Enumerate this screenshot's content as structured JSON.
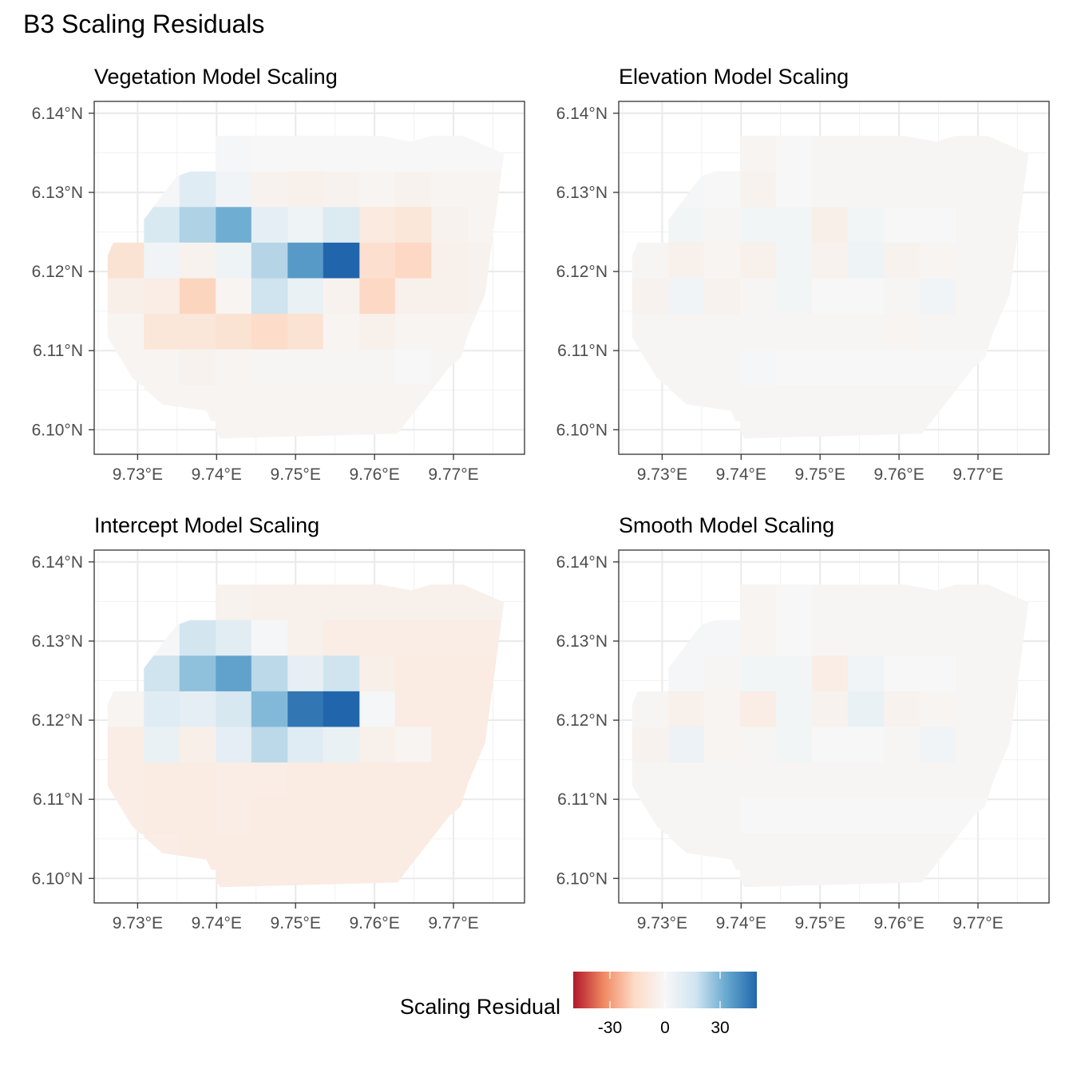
{
  "figure": {
    "title": "B3 Scaling Residuals"
  },
  "legend": {
    "title": "Scaling Residual",
    "tick_labels": [
      "-30",
      "0",
      "30"
    ],
    "tick_values": [
      -30,
      0,
      30
    ],
    "range": [
      -50,
      50
    ],
    "palette": "RdBu",
    "colors": [
      "#b2182b",
      "#ef8a62",
      "#fddbc7",
      "#f7f7f7",
      "#d1e5f0",
      "#67a9cf",
      "#2166ac"
    ],
    "position": "bottom"
  },
  "chart_data": [
    {
      "type": "heatmap",
      "title": "Vegetation Model Scaling",
      "xlabel": "",
      "ylabel": "",
      "x_tick_labels": [
        "9.73°E",
        "9.74°E",
        "9.75°E",
        "9.76°E",
        "9.77°E"
      ],
      "x_ticks": [
        9.73,
        9.74,
        9.75,
        9.76,
        9.77
      ],
      "y_tick_labels": [
        "6.10°N",
        "6.11°N",
        "6.12°N",
        "6.13°N",
        "6.14°N"
      ],
      "y_ticks": [
        6.1,
        6.11,
        6.12,
        6.13,
        6.14
      ],
      "xlim": [
        9.7245,
        9.779
      ],
      "ylim": [
        6.0969,
        6.1415
      ],
      "x_centers": [
        9.7285,
        9.7331,
        9.7376,
        9.7422,
        9.7467,
        9.7513,
        9.7558,
        9.7604,
        9.7649,
        9.7695,
        9.7741
      ],
      "y_centers": [
        6.1349,
        6.1304,
        6.1259,
        6.1214,
        6.1169,
        6.1124,
        6.1079,
        6.1034,
        6.0989
      ],
      "boundary": [
        [
          9.7286,
          6.1246
        ],
        [
          9.7309,
          6.1267
        ],
        [
          9.7343,
          6.1312
        ],
        [
          9.7351,
          6.1321
        ],
        [
          9.7371,
          6.1328
        ],
        [
          9.7381,
          6.1394
        ],
        [
          9.7502,
          6.1391
        ],
        [
          9.7647,
          6.1364
        ],
        [
          9.7695,
          6.1379
        ],
        [
          9.7764,
          6.1349
        ],
        [
          9.774,
          6.1171
        ],
        [
          9.7719,
          6.1122
        ],
        [
          9.7709,
          6.1091
        ],
        [
          9.7694,
          6.1078
        ],
        [
          9.7629,
          6.0995
        ],
        [
          9.7404,
          6.0989
        ],
        [
          9.7387,
          6.1024
        ],
        [
          9.7331,
          6.1032
        ],
        [
          9.7293,
          6.1066
        ],
        [
          9.7262,
          6.1117
        ],
        [
          9.7259,
          6.1213
        ],
        [
          9.7272,
          6.1243
        ]
      ],
      "values": [
        [
          null,
          null,
          null,
          1,
          0,
          0,
          0,
          0,
          0,
          0,
          0
        ],
        [
          null,
          1,
          10,
          3,
          -3,
          -4,
          -3,
          -2,
          -3,
          -2,
          -2
        ],
        [
          null,
          13,
          22,
          32,
          8,
          4,
          12,
          -8,
          -10,
          -3,
          -2
        ],
        [
          -12,
          3,
          -3,
          4,
          21,
          37,
          50,
          -14,
          -17,
          -4,
          -3
        ],
        [
          -5,
          -6,
          -18,
          -2,
          17,
          6,
          -3,
          -17,
          -4,
          -4,
          -3
        ],
        [
          -2,
          -10,
          -10,
          -12,
          -16,
          -12,
          -2,
          -4,
          -2,
          -2,
          -2
        ],
        [
          -2,
          -2,
          -3,
          -2,
          -1,
          -1,
          -1,
          -1,
          0,
          -1,
          -1
        ],
        [
          null,
          -2,
          -2,
          -2,
          -2,
          -2,
          -2,
          -2,
          -2,
          -1,
          null
        ],
        [
          null,
          null,
          null,
          -2,
          -2,
          -2,
          -2,
          -2,
          -2,
          null,
          null
        ]
      ]
    },
    {
      "type": "heatmap",
      "title": "Elevation Model Scaling",
      "xlabel": "",
      "ylabel": "",
      "x_tick_labels": [
        "9.73°E",
        "9.74°E",
        "9.75°E",
        "9.76°E",
        "9.77°E"
      ],
      "x_ticks": [
        9.73,
        9.74,
        9.75,
        9.76,
        9.77
      ],
      "y_tick_labels": [
        "6.10°N",
        "6.11°N",
        "6.12°N",
        "6.13°N",
        "6.14°N"
      ],
      "y_ticks": [
        6.1,
        6.11,
        6.12,
        6.13,
        6.14
      ],
      "xlim": [
        9.7245,
        9.779
      ],
      "ylim": [
        6.0969,
        6.1415
      ],
      "x_centers": [
        9.7285,
        9.7331,
        9.7376,
        9.7422,
        9.7467,
        9.7513,
        9.7558,
        9.7604,
        9.7649,
        9.7695,
        9.7741
      ],
      "y_centers": [
        6.1349,
        6.1304,
        6.1259,
        6.1214,
        6.1169,
        6.1124,
        6.1079,
        6.1034,
        6.0989
      ],
      "boundary": [
        [
          9.7286,
          6.1246
        ],
        [
          9.7309,
          6.1267
        ],
        [
          9.7343,
          6.1312
        ],
        [
          9.7351,
          6.1321
        ],
        [
          9.7371,
          6.1328
        ],
        [
          9.7381,
          6.1394
        ],
        [
          9.7502,
          6.1391
        ],
        [
          9.7647,
          6.1364
        ],
        [
          9.7695,
          6.1379
        ],
        [
          9.7764,
          6.1349
        ],
        [
          9.774,
          6.1171
        ],
        [
          9.7719,
          6.1122
        ],
        [
          9.7709,
          6.1091
        ],
        [
          9.7694,
          6.1078
        ],
        [
          9.7629,
          6.0995
        ],
        [
          9.7404,
          6.0989
        ],
        [
          9.7387,
          6.1024
        ],
        [
          9.7331,
          6.1032
        ],
        [
          9.7293,
          6.1066
        ],
        [
          9.7262,
          6.1117
        ],
        [
          9.7259,
          6.1213
        ],
        [
          9.7272,
          6.1243
        ]
      ],
      "values": [
        [
          null,
          null,
          null,
          -2,
          0,
          -1,
          -1,
          -1,
          -1,
          -1,
          -1
        ],
        [
          null,
          1,
          0,
          -3,
          0,
          -1,
          -1,
          -1,
          -1,
          -1,
          -1
        ],
        [
          null,
          2,
          -1,
          2,
          2,
          -5,
          2,
          0,
          0,
          -1,
          -1
        ],
        [
          -1,
          -4,
          -2,
          -4,
          2,
          -3,
          4,
          -3,
          -2,
          -1,
          -1
        ],
        [
          -3,
          3,
          -3,
          -1,
          2,
          0,
          0,
          -1,
          3,
          -1,
          -1
        ],
        [
          -1,
          -1,
          -1,
          -1,
          -1,
          -1,
          -1,
          -2,
          -1,
          -1,
          -1
        ],
        [
          -1,
          -1,
          -1,
          1,
          0,
          0,
          0,
          0,
          0,
          0,
          0
        ],
        [
          null,
          -1,
          -1,
          -1,
          -1,
          -1,
          -1,
          -1,
          -1,
          -1,
          null
        ],
        [
          null,
          null,
          null,
          -1,
          -1,
          -1,
          -1,
          -1,
          -1,
          null,
          null
        ]
      ]
    },
    {
      "type": "heatmap",
      "title": "Intercept Model Scaling",
      "xlabel": "",
      "ylabel": "",
      "x_tick_labels": [
        "9.73°E",
        "9.74°E",
        "9.75°E",
        "9.76°E",
        "9.77°E"
      ],
      "x_ticks": [
        9.73,
        9.74,
        9.75,
        9.76,
        9.77
      ],
      "y_tick_labels": [
        "6.10°N",
        "6.11°N",
        "6.12°N",
        "6.13°N",
        "6.14°N"
      ],
      "y_ticks": [
        6.1,
        6.11,
        6.12,
        6.13,
        6.14
      ],
      "xlim": [
        9.7245,
        9.779
      ],
      "ylim": [
        6.0969,
        6.1415
      ],
      "x_centers": [
        9.7285,
        9.7331,
        9.7376,
        9.7422,
        9.7467,
        9.7513,
        9.7558,
        9.7604,
        9.7649,
        9.7695,
        9.7741
      ],
      "y_centers": [
        6.1349,
        6.1304,
        6.1259,
        6.1214,
        6.1169,
        6.1124,
        6.1079,
        6.1034,
        6.0989
      ],
      "boundary": [
        [
          9.7286,
          6.1246
        ],
        [
          9.7309,
          6.1267
        ],
        [
          9.7343,
          6.1312
        ],
        [
          9.7351,
          6.1321
        ],
        [
          9.7371,
          6.1328
        ],
        [
          9.7381,
          6.1394
        ],
        [
          9.7502,
          6.1391
        ],
        [
          9.7647,
          6.1364
        ],
        [
          9.7695,
          6.1379
        ],
        [
          9.7764,
          6.1349
        ],
        [
          9.774,
          6.1171
        ],
        [
          9.7719,
          6.1122
        ],
        [
          9.7709,
          6.1091
        ],
        [
          9.7694,
          6.1078
        ],
        [
          9.7629,
          6.0995
        ],
        [
          9.7404,
          6.0989
        ],
        [
          9.7387,
          6.1024
        ],
        [
          9.7331,
          6.1032
        ],
        [
          9.7293,
          6.1066
        ],
        [
          9.7262,
          6.1117
        ],
        [
          9.7259,
          6.1213
        ],
        [
          9.7272,
          6.1243
        ]
      ],
      "values": [
        [
          null,
          null,
          null,
          -3,
          -4,
          -4,
          -4,
          -4,
          -4,
          -4,
          -4
        ],
        [
          null,
          1,
          16,
          9,
          1,
          -4,
          -6,
          -6,
          -6,
          -6,
          -6
        ],
        [
          null,
          17,
          27,
          35,
          20,
          7,
          17,
          -5,
          -7,
          -7,
          -7
        ],
        [
          -2,
          10,
          8,
          14,
          29,
          46,
          55,
          1,
          -7,
          -7,
          -7
        ],
        [
          -6,
          6,
          -5,
          8,
          20,
          10,
          6,
          -4,
          -2,
          -7,
          -7
        ],
        [
          -6,
          -7,
          -7,
          -6,
          -6,
          -7,
          -7,
          -7,
          -7,
          -7,
          -7
        ],
        [
          -6,
          -7,
          -7,
          -6,
          -7,
          -7,
          -7,
          -7,
          -7,
          -7,
          -7
        ],
        [
          null,
          -6,
          -7,
          -7,
          -7,
          -7,
          -7,
          -7,
          -7,
          -7,
          null
        ],
        [
          null,
          null,
          null,
          -7,
          -7,
          -7,
          -7,
          -7,
          -7,
          null,
          null
        ]
      ]
    },
    {
      "type": "heatmap",
      "title": "Smooth Model Scaling",
      "xlabel": "",
      "ylabel": "",
      "x_tick_labels": [
        "9.73°E",
        "9.74°E",
        "9.75°E",
        "9.76°E",
        "9.77°E"
      ],
      "x_ticks": [
        9.73,
        9.74,
        9.75,
        9.76,
        9.77
      ],
      "y_tick_labels": [
        "6.10°N",
        "6.11°N",
        "6.12°N",
        "6.13°N",
        "6.14°N"
      ],
      "y_ticks": [
        6.1,
        6.11,
        6.12,
        6.13,
        6.14
      ],
      "xlim": [
        9.7245,
        9.779
      ],
      "ylim": [
        6.0969,
        6.1415
      ],
      "x_centers": [
        9.7285,
        9.7331,
        9.7376,
        9.7422,
        9.7467,
        9.7513,
        9.7558,
        9.7604,
        9.7649,
        9.7695,
        9.7741
      ],
      "y_centers": [
        6.1349,
        6.1304,
        6.1259,
        6.1214,
        6.1169,
        6.1124,
        6.1079,
        6.1034,
        6.0989
      ],
      "boundary": [
        [
          9.7286,
          6.1246
        ],
        [
          9.7309,
          6.1267
        ],
        [
          9.7343,
          6.1312
        ],
        [
          9.7351,
          6.1321
        ],
        [
          9.7371,
          6.1328
        ],
        [
          9.7381,
          6.1394
        ],
        [
          9.7502,
          6.1391
        ],
        [
          9.7647,
          6.1364
        ],
        [
          9.7695,
          6.1379
        ],
        [
          9.7764,
          6.1349
        ],
        [
          9.774,
          6.1171
        ],
        [
          9.7719,
          6.1122
        ],
        [
          9.7709,
          6.1091
        ],
        [
          9.7694,
          6.1078
        ],
        [
          9.7629,
          6.0995
        ],
        [
          9.7404,
          6.0989
        ],
        [
          9.7387,
          6.1024
        ],
        [
          9.7331,
          6.1032
        ],
        [
          9.7293,
          6.1066
        ],
        [
          9.7262,
          6.1117
        ],
        [
          9.7259,
          6.1213
        ],
        [
          9.7272,
          6.1243
        ]
      ],
      "values": [
        [
          null,
          null,
          null,
          -2,
          0,
          -1,
          -1,
          -1,
          -1,
          -1,
          -1
        ],
        [
          null,
          1,
          1,
          -2,
          0,
          -1,
          -1,
          -1,
          -1,
          -1,
          -1
        ],
        [
          null,
          1,
          -1,
          2,
          2,
          -6,
          3,
          0,
          0,
          -1,
          -1
        ],
        [
          -1,
          -4,
          -2,
          -6,
          2,
          -3,
          6,
          -3,
          -2,
          -1,
          -1
        ],
        [
          -3,
          5,
          -2,
          -1,
          2,
          0,
          0,
          -1,
          3,
          -1,
          -1
        ],
        [
          -1,
          -1,
          -1,
          -1,
          -1,
          -1,
          -1,
          -1,
          -1,
          -1,
          -1
        ],
        [
          -1,
          -1,
          -1,
          0,
          0,
          0,
          0,
          0,
          0,
          0,
          0
        ],
        [
          null,
          -1,
          -1,
          -1,
          -1,
          -1,
          -1,
          -1,
          -1,
          -1,
          null
        ],
        [
          null,
          null,
          null,
          -1,
          -1,
          -1,
          -1,
          -1,
          -1,
          null,
          null
        ]
      ]
    }
  ]
}
